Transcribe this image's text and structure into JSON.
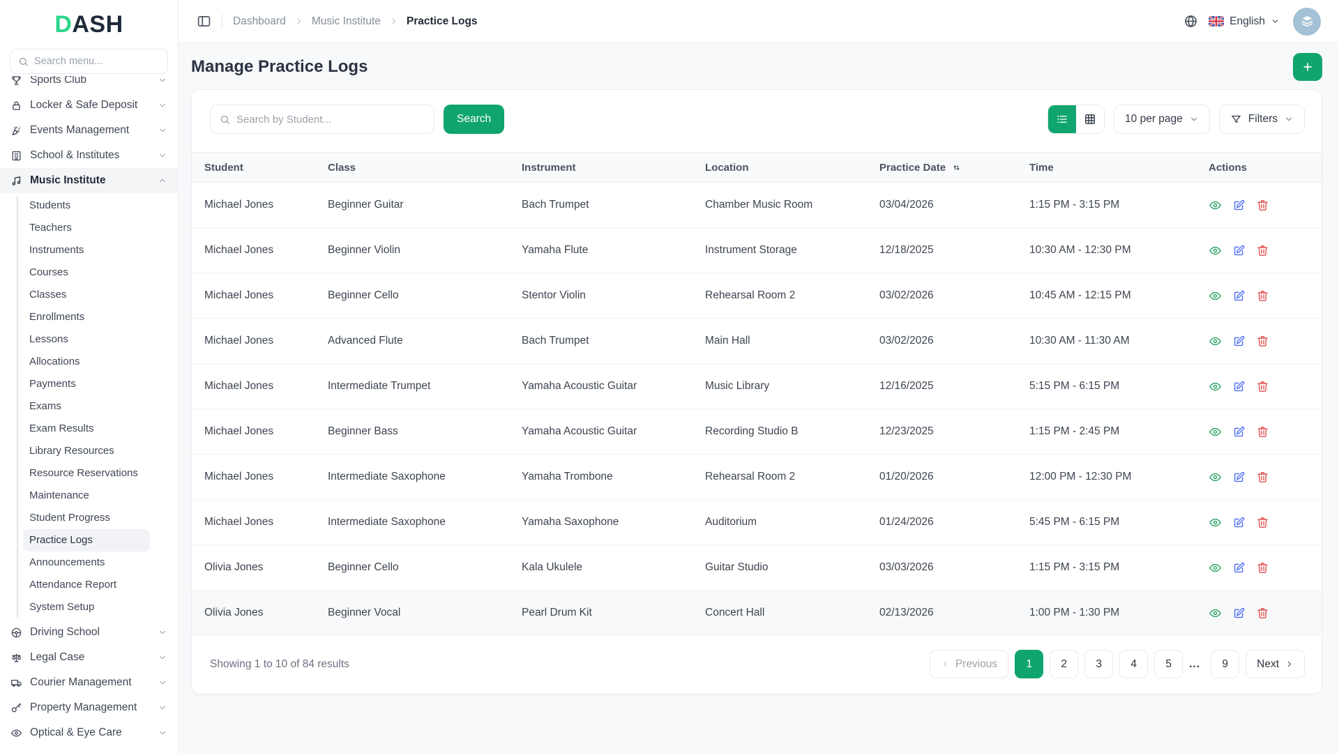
{
  "brand": {
    "logo_accent": "D",
    "logo_rest": "ASH"
  },
  "sidebar": {
    "search_placeholder": "Search menu...",
    "items": [
      {
        "label": "Sports Club",
        "icon": "sports-club-icon",
        "clipped": true
      },
      {
        "label": "Locker & Safe Deposit",
        "icon": "lock-icon"
      },
      {
        "label": "Events Management",
        "icon": "party-popper-icon"
      },
      {
        "label": "School & Institutes",
        "icon": "school-building-icon"
      },
      {
        "label": "Music Institute",
        "icon": "music-note-icon",
        "expanded": true,
        "children": [
          "Students",
          "Teachers",
          "Instruments",
          "Courses",
          "Classes",
          "Enrollments",
          "Lessons",
          "Allocations",
          "Payments",
          "Exams",
          "Exam Results",
          "Library Resources",
          "Resource Reservations",
          "Maintenance",
          "Student Progress",
          "Practice Logs",
          "Announcements",
          "Attendance Report",
          "System Setup"
        ],
        "active_child": "Practice Logs"
      },
      {
        "label": "Driving School",
        "icon": "steering-wheel-icon"
      },
      {
        "label": "Legal Case",
        "icon": "scales-icon"
      },
      {
        "label": "Courier Management",
        "icon": "truck-icon"
      },
      {
        "label": "Property Management",
        "icon": "key-icon"
      },
      {
        "label": "Optical & Eye Care",
        "icon": "eye-icon"
      }
    ]
  },
  "topbar": {
    "breadcrumb": [
      {
        "label": "Dashboard",
        "current": false
      },
      {
        "label": "Music Institute",
        "current": false
      },
      {
        "label": "Practice Logs",
        "current": true
      }
    ],
    "language": {
      "label": "English",
      "flag": "uk-flag-icon"
    }
  },
  "page": {
    "title": "Manage Practice Logs"
  },
  "toolbar": {
    "search_placeholder": "Search by Student...",
    "search_button": "Search",
    "per_page": "10 per page",
    "filters": "Filters"
  },
  "table": {
    "columns": [
      {
        "label": "Student"
      },
      {
        "label": "Class"
      },
      {
        "label": "Instrument"
      },
      {
        "label": "Location"
      },
      {
        "label": "Practice Date",
        "sortable": true
      },
      {
        "label": "Time"
      },
      {
        "label": "Actions"
      }
    ],
    "rows": [
      {
        "student": "Michael Jones",
        "class": "Beginner Guitar",
        "instrument": "Bach Trumpet",
        "location": "Chamber Music Room",
        "practice_date": "03/04/2026",
        "time": "1:15 PM - 3:15 PM"
      },
      {
        "student": "Michael Jones",
        "class": "Beginner Violin",
        "instrument": "Yamaha Flute",
        "location": "Instrument Storage",
        "practice_date": "12/18/2025",
        "time": "10:30 AM - 12:30 PM"
      },
      {
        "student": "Michael Jones",
        "class": "Beginner Cello",
        "instrument": "Stentor Violin",
        "location": "Rehearsal Room 2",
        "practice_date": "03/02/2026",
        "time": "10:45 AM - 12:15 PM"
      },
      {
        "student": "Michael Jones",
        "class": "Advanced Flute",
        "instrument": "Bach Trumpet",
        "location": "Main Hall",
        "practice_date": "03/02/2026",
        "time": "10:30 AM - 11:30 AM"
      },
      {
        "student": "Michael Jones",
        "class": "Intermediate Trumpet",
        "instrument": "Yamaha Acoustic Guitar",
        "location": "Music Library",
        "practice_date": "12/16/2025",
        "time": "5:15 PM - 6:15 PM"
      },
      {
        "student": "Michael Jones",
        "class": "Beginner Bass",
        "instrument": "Yamaha Acoustic Guitar",
        "location": "Recording Studio B",
        "practice_date": "12/23/2025",
        "time": "1:15 PM - 2:45 PM"
      },
      {
        "student": "Michael Jones",
        "class": "Intermediate Saxophone",
        "instrument": "Yamaha Trombone",
        "location": "Rehearsal Room 2",
        "practice_date": "01/20/2026",
        "time": "12:00 PM - 12:30 PM"
      },
      {
        "student": "Michael Jones",
        "class": "Intermediate Saxophone",
        "instrument": "Yamaha Saxophone",
        "location": "Auditorium",
        "practice_date": "01/24/2026",
        "time": "5:45 PM - 6:15 PM"
      },
      {
        "student": "Olivia Jones",
        "class": "Beginner Cello",
        "instrument": "Kala Ukulele",
        "location": "Guitar Studio",
        "practice_date": "03/03/2026",
        "time": "1:15 PM - 3:15 PM"
      },
      {
        "student": "Olivia Jones",
        "class": "Beginner Vocal",
        "instrument": "Pearl Drum Kit",
        "location": "Concert Hall",
        "practice_date": "02/13/2026",
        "time": "1:00 PM - 1:30 PM",
        "highlighted": true
      }
    ],
    "summary": "Showing 1 to 10 of 84 results"
  },
  "pagination": {
    "previous": "Previous",
    "next": "Next",
    "pages": [
      "1",
      "2",
      "3",
      "4",
      "5",
      "...",
      "9"
    ],
    "active": "1"
  },
  "colors": {
    "primary_green": "#10a56e",
    "logo_green": "#2bd68c",
    "view_icon": "#27a361",
    "edit_icon": "#4f6ef7",
    "delete_icon": "#e05252"
  }
}
